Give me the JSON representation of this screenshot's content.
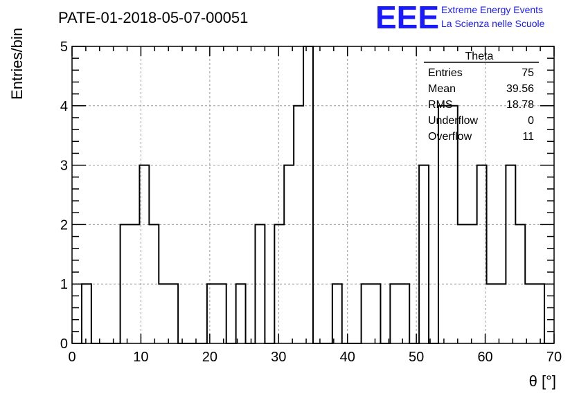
{
  "chart_data": {
    "type": "bar",
    "title": "PATE-01-2018-05-07-00051",
    "xlabel": "θ [°]",
    "ylabel": "Entries/bin",
    "xlim": [
      0,
      70
    ],
    "ylim": [
      0,
      5
    ],
    "grid": true,
    "bin_width": 1.4,
    "x_ticks": [
      "0",
      "10",
      "20",
      "30",
      "40",
      "50",
      "60",
      "70"
    ],
    "y_ticks": [
      "0",
      "1",
      "2",
      "3",
      "4",
      "5"
    ],
    "values": [
      0,
      1,
      0,
      0,
      0,
      2,
      2,
      3,
      2,
      1,
      1,
      0,
      0,
      0,
      1,
      1,
      0,
      1,
      0,
      2,
      0,
      2,
      3,
      4,
      5,
      0,
      0,
      1,
      0,
      0,
      1,
      1,
      0,
      1,
      1,
      0,
      3,
      0,
      4,
      4,
      2,
      2,
      3,
      1,
      1,
      3,
      2,
      1,
      1,
      0
    ],
    "stats_box": {
      "title": "Theta",
      "placement": "top-right",
      "rows": [
        {
          "label": "Entries",
          "value": "75"
        },
        {
          "label": "Mean",
          "value": "39.56"
        },
        {
          "label": "RMS",
          "value": "18.78"
        },
        {
          "label": "Underflow",
          "value": "0"
        },
        {
          "label": "Overflow",
          "value": "11"
        }
      ]
    }
  },
  "logo": {
    "mark": "EEE",
    "line1": "Extreme Energy Events",
    "line2": "La Scienza nelle Scuole",
    "color": "#1a1aff"
  }
}
